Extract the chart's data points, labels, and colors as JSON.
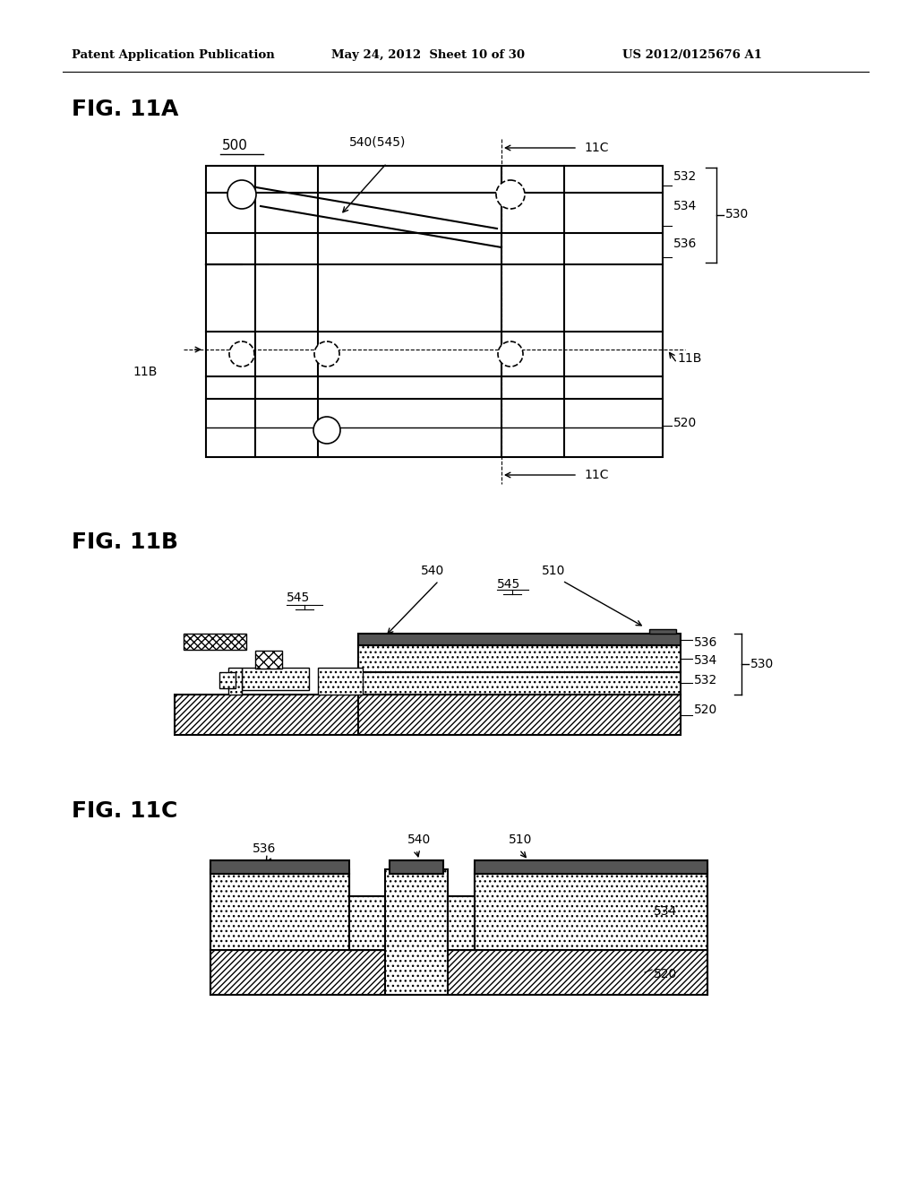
{
  "header_left": "Patent Application Publication",
  "header_center": "May 24, 2012  Sheet 10 of 30",
  "header_right": "US 2012/0125676 A1",
  "bg_color": "#ffffff",
  "line_color": "#000000"
}
